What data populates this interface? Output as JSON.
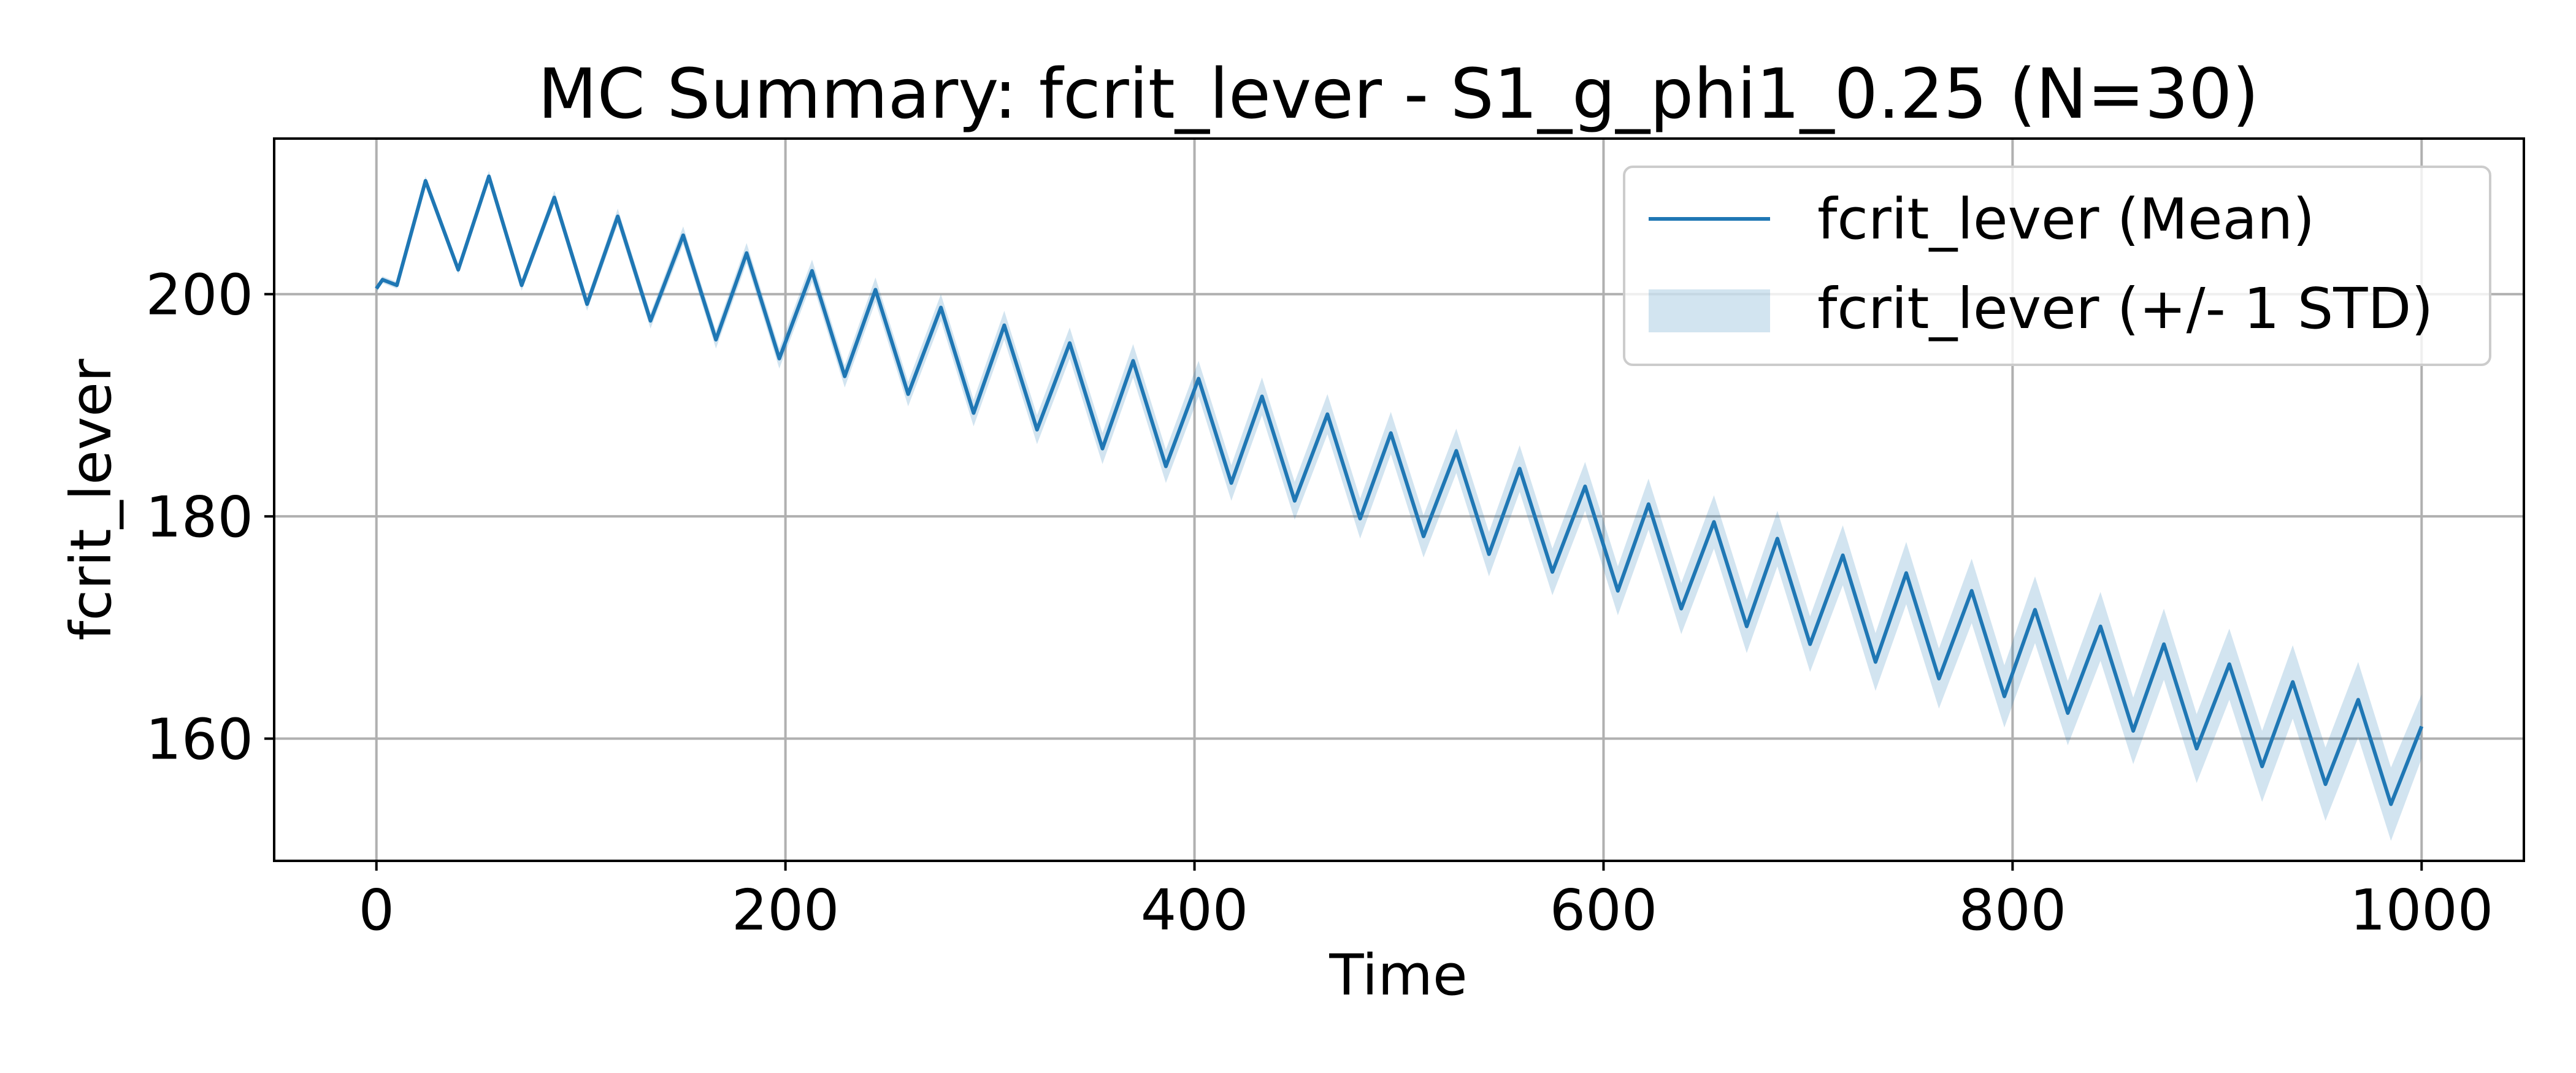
{
  "chart_data": {
    "type": "line",
    "title": "MC Summary: fcrit_lever - S1_g_phi1_0.25 (N=30)",
    "xlabel": "Time",
    "ylabel": "fcrit_lever",
    "xlim": [
      -50,
      1050
    ],
    "ylim": [
      149,
      214
    ],
    "xticks": [
      0,
      200,
      400,
      600,
      800,
      1000
    ],
    "yticks": [
      160,
      180,
      200
    ],
    "xtick_labels": [
      "0",
      "200",
      "400",
      "600",
      "800",
      "1000"
    ],
    "ytick_labels": [
      "160",
      "180",
      "200"
    ],
    "grid": true,
    "legend_position": "upper right",
    "colors": {
      "mean_line": "#1f77b4",
      "std_band": "#1f77b4",
      "std_band_opacity": 0.2,
      "grid": "#b0b0b0",
      "axes": "#000000"
    },
    "series": [
      {
        "name": "fcrit_lever (Mean)",
        "kind": "line",
        "x": [
          0,
          3,
          10,
          24,
          40,
          55,
          71,
          87,
          103,
          118,
          134,
          150,
          166,
          181,
          197,
          213,
          229,
          244,
          260,
          276,
          292,
          307,
          323,
          339,
          355,
          370,
          386,
          402,
          418,
          433,
          449,
          465,
          481,
          496,
          512,
          528,
          544,
          559,
          575,
          591,
          607,
          622,
          638,
          654,
          670,
          685,
          701,
          717,
          733,
          748,
          764,
          780,
          796,
          811,
          827,
          843,
          859,
          874,
          890,
          906,
          922,
          937,
          953,
          969,
          985,
          1000
        ],
        "y": [
          200.5,
          201.3,
          200.8,
          210.2,
          202.2,
          210.6,
          200.8,
          208.7,
          199.1,
          207.0,
          197.6,
          205.3,
          195.9,
          203.7,
          194.2,
          202.1,
          192.6,
          200.4,
          191.0,
          198.8,
          189.3,
          197.2,
          187.8,
          195.6,
          186.1,
          194.0,
          184.5,
          192.4,
          183.0,
          190.8,
          181.4,
          189.2,
          179.8,
          187.5,
          178.2,
          185.9,
          176.6,
          184.3,
          175.0,
          182.7,
          173.3,
          181.1,
          171.7,
          179.5,
          170.1,
          178.0,
          168.5,
          176.5,
          166.9,
          174.9,
          165.4,
          173.3,
          163.8,
          171.6,
          162.3,
          170.1,
          160.7,
          168.5,
          159.1,
          166.7,
          157.5,
          165.1,
          155.9,
          163.5,
          154.1,
          161.1
        ]
      },
      {
        "name": "fcrit_lever (+/- 1 STD)",
        "kind": "band",
        "x": [
          0,
          3,
          10,
          24,
          40,
          55,
          71,
          87,
          103,
          118,
          134,
          150,
          166,
          181,
          197,
          213,
          229,
          244,
          260,
          276,
          292,
          307,
          323,
          339,
          355,
          370,
          386,
          402,
          418,
          433,
          449,
          465,
          481,
          496,
          512,
          528,
          544,
          559,
          575,
          591,
          607,
          622,
          638,
          654,
          670,
          685,
          701,
          717,
          733,
          748,
          764,
          780,
          796,
          811,
          827,
          843,
          859,
          874,
          890,
          906,
          922,
          937,
          953,
          969,
          985,
          1000
        ],
        "y_low": [
          200.2,
          201.0,
          200.5,
          209.8,
          201.8,
          210.1,
          200.3,
          208.1,
          198.5,
          206.3,
          196.9,
          204.5,
          195.1,
          202.8,
          193.3,
          201.1,
          191.6,
          199.3,
          189.9,
          197.6,
          188.1,
          195.9,
          186.5,
          194.2,
          184.7,
          192.5,
          183.0,
          190.8,
          181.4,
          189.1,
          179.7,
          187.4,
          178.0,
          185.6,
          176.3,
          183.9,
          174.6,
          182.2,
          172.9,
          180.5,
          171.1,
          178.8,
          169.4,
          177.1,
          167.7,
          175.5,
          166.0,
          173.8,
          164.3,
          172.1,
          162.7,
          170.4,
          161.0,
          168.6,
          159.4,
          167.0,
          157.7,
          165.3,
          156.0,
          163.5,
          154.3,
          161.8,
          152.6,
          160.1,
          150.8,
          158.2
        ],
        "y_high": [
          200.8,
          201.6,
          201.1,
          210.6,
          202.6,
          211.1,
          201.3,
          209.3,
          199.7,
          207.7,
          198.3,
          206.1,
          196.7,
          204.6,
          195.1,
          203.1,
          193.6,
          201.5,
          192.1,
          200.0,
          190.5,
          198.5,
          189.1,
          197.0,
          187.5,
          195.5,
          186.0,
          194.0,
          184.6,
          192.5,
          183.1,
          191.0,
          181.6,
          189.4,
          180.1,
          187.9,
          178.6,
          186.4,
          177.1,
          184.9,
          175.5,
          183.4,
          174.0,
          181.9,
          172.5,
          180.5,
          171.0,
          179.2,
          169.5,
          177.7,
          168.1,
          176.2,
          166.6,
          174.6,
          165.2,
          173.2,
          163.7,
          171.7,
          162.2,
          169.9,
          160.7,
          168.4,
          159.2,
          166.9,
          157.4,
          164.0
        ]
      }
    ]
  }
}
